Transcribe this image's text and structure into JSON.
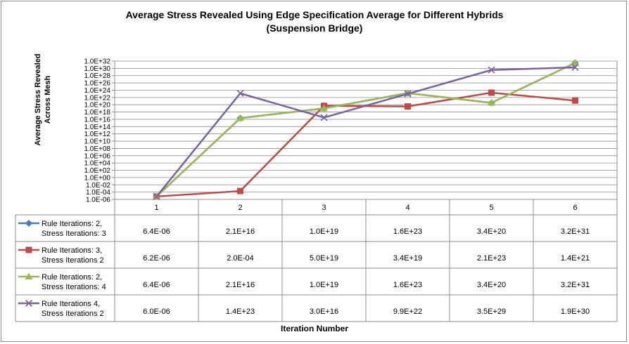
{
  "chart_data": {
    "type": "line",
    "title_line1": "Average Stress Revealed Using Edge Specification Average for Different Hybrids",
    "title_line2": "(Suspension Bridge)",
    "ylabel_line1": "Average Stress Revealed",
    "ylabel_line2": "Across Mesh",
    "xlabel": "Iteration Number",
    "y_scale": "log",
    "ylim": [
      1e-06,
      1e+32
    ],
    "y_ticks": [
      "1.0E-06",
      "1.0E-04",
      "1.0E-02",
      "1.0E+00",
      "1.0E+02",
      "1.0E+04",
      "1.0E+06",
      "1.0E+08",
      "1.0E+10",
      "1.0E+12",
      "1.0E+14",
      "1.0E+16",
      "1.0E+18",
      "1.0E+20",
      "1.0E+22",
      "1.0E+24",
      "1.0E+26",
      "1.0E+28",
      "1.0E+30",
      "1.0E+32"
    ],
    "categories": [
      "1",
      "2",
      "3",
      "4",
      "5",
      "6"
    ],
    "grid": true,
    "legend": "data-table",
    "series": [
      {
        "name_line1": "Rule Iterations: 2,",
        "name_line2": "Stress Iterations: 3",
        "color": "#4a7ebb",
        "marker": "diamond",
        "labels": [
          "6.4E-06",
          "2.1E+16",
          "1.0E+19",
          "1.6E+23",
          "3.4E+20",
          "3.2E+31"
        ],
        "values": [
          6.4e-06,
          2.1e+16,
          1e+19,
          1.6e+23,
          3.4e+20,
          3.2e+31
        ]
      },
      {
        "name_line1": "Rule Iterations: 3,",
        "name_line2": "Stress Iterations 2",
        "color": "#be4b48",
        "marker": "square",
        "labels": [
          "6.2E-06",
          "2.0E-04",
          "5.0E+19",
          "3.4E+19",
          "2.1E+23",
          "1.4E+21"
        ],
        "values": [
          6.2e-06,
          0.0002,
          5e+19,
          3.4e+19,
          2.1e+23,
          1.4e+21
        ]
      },
      {
        "name_line1": "Rule Iterations: 2,",
        "name_line2": "Stress Iterations: 4",
        "color": "#98b954",
        "marker": "triangle",
        "labels": [
          "6.4E-06",
          "2.1E+16",
          "1.0E+19",
          "1.6E+23",
          "3.4E+20",
          "3.2E+31"
        ],
        "values": [
          6.4e-06,
          2.1e+16,
          1e+19,
          1.6e+23,
          3.4e+20,
          3.2e+31
        ]
      },
      {
        "name_line1": "Rule Iterations 4,",
        "name_line2": "Stress Iterations 2",
        "color": "#7d60a0",
        "marker": "x",
        "labels": [
          "6.0E-06",
          "1.4E+23",
          "3.0E+16",
          "9.9E+22",
          "3.5E+29",
          "1.9E+30"
        ],
        "values": [
          6e-06,
          1.4e+23,
          3e+16,
          9.9e+22,
          3.5e+29,
          1.9e+30
        ]
      }
    ]
  }
}
